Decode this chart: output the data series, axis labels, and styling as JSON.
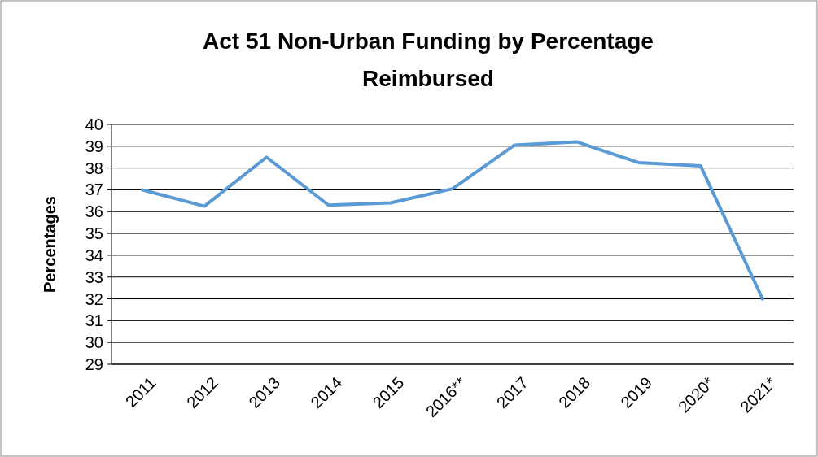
{
  "chart_data": {
    "type": "line",
    "title": "Act 51 Non-Urban Funding by Percentage Reimbursed",
    "ylabel": "Percentages",
    "categories": [
      "2011",
      "2012",
      "2013",
      "2014",
      "2015",
      "2016**",
      "2017",
      "2018",
      "2019",
      "2020*",
      "2021*"
    ],
    "series": [
      {
        "color": "#5b9bd5",
        "values": [
          37.0,
          36.25,
          38.5,
          36.3,
          36.4,
          37.05,
          39.05,
          39.2,
          38.25,
          38.1,
          32.0
        ]
      }
    ],
    "ylim": [
      29,
      40
    ],
    "yticks": [
      29,
      30,
      31,
      32,
      33,
      34,
      35,
      36,
      37,
      38,
      39,
      40
    ],
    "grid": "y",
    "line_style": "solid"
  }
}
